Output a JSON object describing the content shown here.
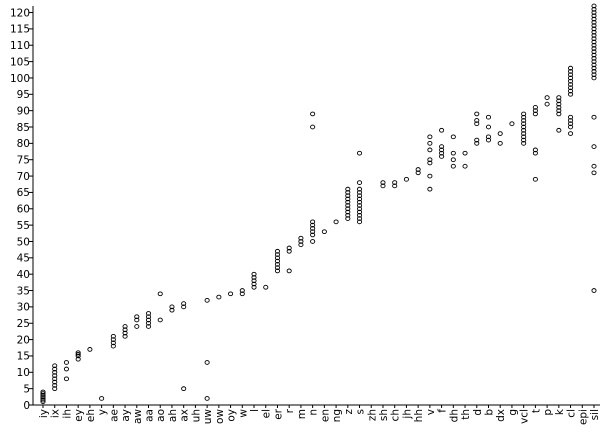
{
  "chart_data": {
    "type": "scatter",
    "title": "",
    "xlabel": "",
    "ylabel": "",
    "ylim": [
      0,
      122
    ],
    "yticks": [
      0,
      5,
      10,
      15,
      20,
      25,
      30,
      35,
      40,
      45,
      50,
      55,
      60,
      65,
      70,
      75,
      80,
      85,
      90,
      95,
      100,
      105,
      110,
      115,
      120
    ],
    "grid": false,
    "legend": "none",
    "categories": [
      "iy",
      "ix",
      "ih",
      "ey",
      "eh",
      "y",
      "ae",
      "ay",
      "aw",
      "aa",
      "ao",
      "ah",
      "ax",
      "uh",
      "uw",
      "ow",
      "oy",
      "w",
      "l",
      "el",
      "er",
      "r",
      "m",
      "n",
      "en",
      "ng",
      "z",
      "s",
      "zh",
      "sh",
      "ch",
      "jh",
      "hh",
      "v",
      "f",
      "dh",
      "th",
      "d",
      "b",
      "dx",
      "g",
      "vcl",
      "t",
      "p",
      "k",
      "cl",
      "epi",
      "sil"
    ],
    "points": [
      {
        "category": "iy",
        "values": [
          1,
          1.5,
          2,
          2.5,
          3,
          3.5,
          4
        ]
      },
      {
        "category": "ix",
        "values": [
          5,
          6,
          7,
          8,
          9,
          10,
          11,
          12
        ]
      },
      {
        "category": "ih",
        "values": [
          8,
          11,
          13
        ]
      },
      {
        "category": "ey",
        "values": [
          14,
          15,
          15.5,
          16
        ]
      },
      {
        "category": "eh",
        "values": [
          17
        ]
      },
      {
        "category": "y",
        "values": [
          2
        ]
      },
      {
        "category": "ae",
        "values": [
          18,
          19,
          20,
          21
        ]
      },
      {
        "category": "ay",
        "values": [
          21,
          22,
          23,
          24
        ]
      },
      {
        "category": "aw",
        "values": [
          24,
          26,
          27
        ]
      },
      {
        "category": "aa",
        "values": [
          24,
          25,
          26,
          27,
          28
        ]
      },
      {
        "category": "ao",
        "values": [
          26,
          34
        ]
      },
      {
        "category": "ah",
        "values": [
          29,
          30
        ]
      },
      {
        "category": "ax",
        "values": [
          5,
          30,
          31
        ]
      },
      {
        "category": "uh",
        "values": []
      },
      {
        "category": "uw",
        "values": [
          2,
          13,
          32
        ]
      },
      {
        "category": "ow",
        "values": [
          33
        ]
      },
      {
        "category": "oy",
        "values": [
          34
        ]
      },
      {
        "category": "w",
        "values": [
          34,
          35
        ]
      },
      {
        "category": "l",
        "values": [
          36,
          37,
          38,
          39,
          40
        ]
      },
      {
        "category": "el",
        "values": [
          36
        ]
      },
      {
        "category": "er",
        "values": [
          41,
          42,
          43,
          44,
          45,
          46,
          47
        ]
      },
      {
        "category": "r",
        "values": [
          41,
          47,
          48
        ]
      },
      {
        "category": "m",
        "values": [
          49,
          50,
          51
        ]
      },
      {
        "category": "n",
        "values": [
          50,
          52,
          53,
          54,
          55,
          56,
          85,
          89
        ]
      },
      {
        "category": "en",
        "values": [
          53
        ]
      },
      {
        "category": "ng",
        "values": [
          56
        ]
      },
      {
        "category": "z",
        "values": [
          57,
          58,
          59,
          60,
          61,
          62,
          63,
          64,
          65,
          66
        ]
      },
      {
        "category": "s",
        "values": [
          56,
          57,
          58,
          59,
          60,
          61,
          62,
          63,
          64,
          65,
          66,
          68,
          77
        ]
      },
      {
        "category": "zh",
        "values": []
      },
      {
        "category": "sh",
        "values": [
          67,
          68
        ]
      },
      {
        "category": "ch",
        "values": [
          67,
          68
        ]
      },
      {
        "category": "jh",
        "values": [
          69
        ]
      },
      {
        "category": "hh",
        "values": [
          71,
          72
        ]
      },
      {
        "category": "v",
        "values": [
          66,
          70,
          74,
          75,
          78,
          80,
          82
        ]
      },
      {
        "category": "f",
        "values": [
          76,
          77,
          78,
          79,
          84
        ]
      },
      {
        "category": "dh",
        "values": [
          73,
          75,
          77,
          82
        ]
      },
      {
        "category": "th",
        "values": [
          73,
          77
        ]
      },
      {
        "category": "d",
        "values": [
          80,
          81,
          86,
          87,
          89
        ]
      },
      {
        "category": "b",
        "values": [
          81,
          82,
          85,
          88
        ]
      },
      {
        "category": "dx",
        "values": [
          80,
          83
        ]
      },
      {
        "category": "g",
        "values": [
          86
        ]
      },
      {
        "category": "vcl",
        "values": [
          80,
          81,
          82,
          83,
          84,
          85,
          86,
          87,
          88,
          89
        ]
      },
      {
        "category": "t",
        "values": [
          69,
          77,
          78,
          89,
          90,
          91
        ]
      },
      {
        "category": "p",
        "values": [
          92,
          94
        ]
      },
      {
        "category": "k",
        "values": [
          84,
          89,
          90,
          91,
          92,
          93,
          94
        ]
      },
      {
        "category": "cl",
        "values": [
          83,
          85,
          86,
          87,
          88,
          95,
          96,
          97,
          98,
          99,
          100,
          101,
          102,
          103
        ]
      },
      {
        "category": "epi",
        "values": []
      },
      {
        "category": "sil",
        "values": [
          35,
          71,
          73,
          79,
          88,
          100,
          101,
          102,
          103,
          104,
          105,
          106,
          107,
          108,
          109,
          110,
          111,
          112,
          113,
          114,
          115,
          116,
          117,
          118,
          119,
          120,
          121,
          122
        ]
      }
    ]
  }
}
